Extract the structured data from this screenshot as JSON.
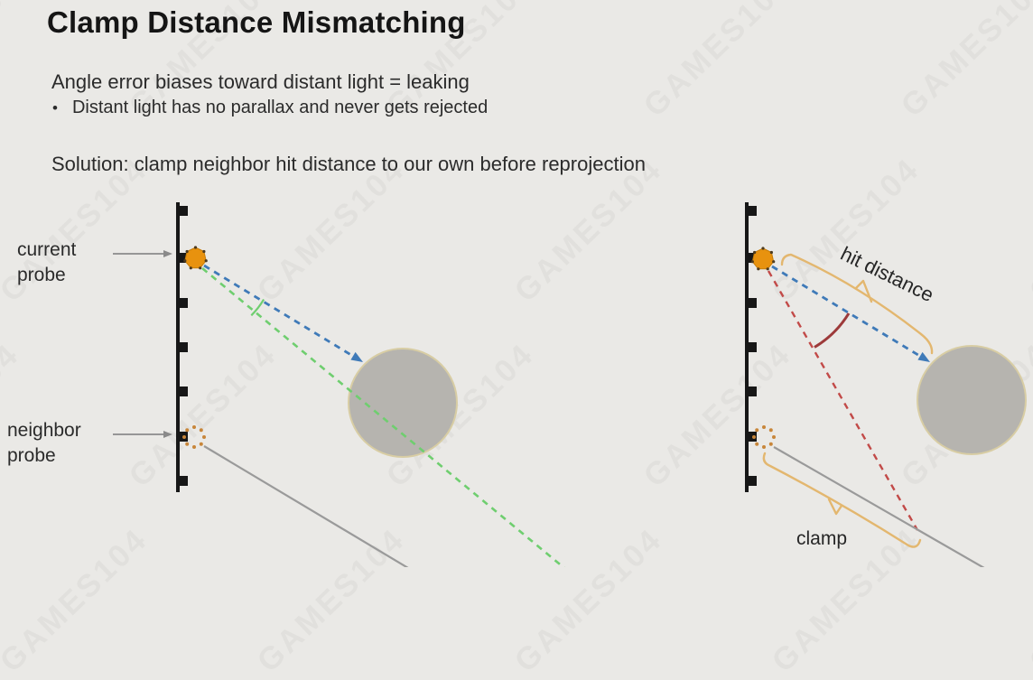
{
  "slide": {
    "title": "Clamp Distance Mismatching",
    "intro_line": "Angle error biases toward distant light = leaking",
    "bullet_marker": "•",
    "bullet_text": "Distant light has no parallax and never gets rejected",
    "solution_line": "Solution: clamp neighbor hit distance to our own before reprojection"
  },
  "left_diagram": {
    "current_probe_label": [
      "current",
      "probe"
    ],
    "neighbor_probe_label": [
      "neighbor",
      "probe"
    ]
  },
  "right_diagram": {
    "hit_distance_label": "hit distance",
    "clamp_label": "clamp"
  },
  "watermark": {
    "text": "GAMES104"
  },
  "colors": {
    "background": "#eae9e6",
    "title_text": "#151515",
    "body_text": "#2b2b2b",
    "wall": "#171717",
    "probe_orange": "#e8920e",
    "neighbor_probe_dots": "#c8863a",
    "ray_blue": "#3f7ab8",
    "ray_green": "#6fce6f",
    "ray_red": "#c24a48",
    "angle_arc_dark_red": "#9d3a3a",
    "occluder_gray": "#b6b4af",
    "occluder_rim": "#d8cda4",
    "miss_ray_gray": "#9a9a9a",
    "brace_orange": "#e3b76f",
    "label_arrow_gray": "#8a8a8a"
  }
}
